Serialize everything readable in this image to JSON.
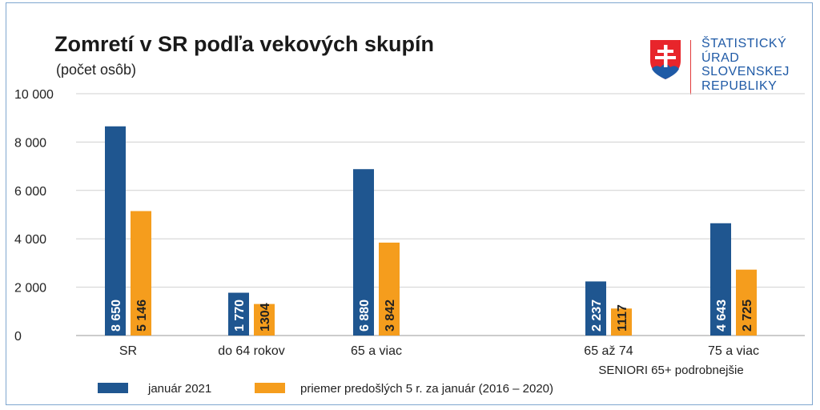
{
  "header": {
    "title": "Zomretí v SR podľa vekových skupín",
    "subtitle": "(počet osôb)"
  },
  "logo": {
    "lines": [
      "ŠTATISTICKÝ",
      "ÚRAD",
      "SLOVENSKEJ",
      "REPUBLIKY"
    ],
    "icon": "slovak-coat-of-arms-icon"
  },
  "chart_data": {
    "type": "bar",
    "title": "Zomretí v SR podľa vekových skupín",
    "ylabel": "(počet osôb)",
    "ylim": [
      0,
      10000
    ],
    "yticks": [
      0,
      2000,
      4000,
      6000,
      8000,
      10000
    ],
    "ytick_labels": [
      "0",
      "2 000",
      "4 000",
      "6 000",
      "8 000",
      "10 000"
    ],
    "grid": true,
    "categories": [
      "SR",
      "do 64 rokov",
      "65 a viac",
      "65 až 74",
      "75 a viac"
    ],
    "group_label": "SENIORI 65+ podrobnejšie",
    "series": [
      {
        "name": "január 2021",
        "color": "#1f5690",
        "values": [
          8650,
          1770,
          6880,
          2237,
          4643
        ],
        "labels": [
          "8 650",
          "1 770",
          "6 880",
          "2 237",
          "4 643"
        ]
      },
      {
        "name": "priemer predošlých 5 r. za január (2016 – 2020)",
        "color": "#f59d1d",
        "values": [
          5146,
          1304,
          3842,
          1117,
          2725
        ],
        "labels": [
          "5 146",
          "1304",
          "3 842",
          "1117",
          "2 725"
        ]
      }
    ],
    "legend": "bottom"
  }
}
